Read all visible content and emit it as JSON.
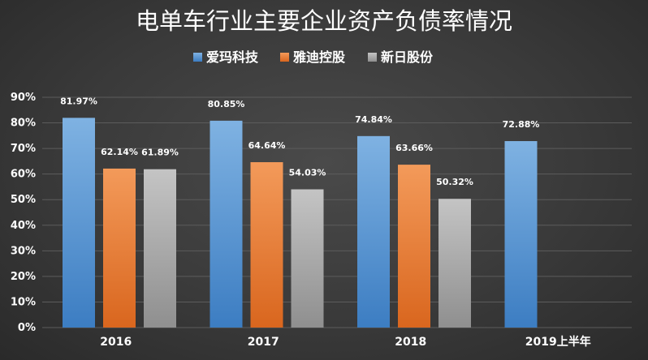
{
  "chart_data": {
    "type": "bar",
    "title": "电单车行业主要企业资产负债率情况",
    "categories": [
      "2016",
      "2017",
      "2018",
      "2019上半年"
    ],
    "series": [
      {
        "name": "爱玛科技",
        "color": "#5b9bd5",
        "values": [
          81.97,
          80.85,
          74.84,
          72.88
        ],
        "labels": [
          "81.97%",
          "80.85%",
          "74.84%",
          "72.88%"
        ]
      },
      {
        "name": "雅迪控股",
        "color": "#ed7d31",
        "values": [
          62.14,
          64.64,
          63.66,
          null
        ],
        "labels": [
          "62.14%",
          "64.64%",
          "63.66%",
          null
        ]
      },
      {
        "name": "新日股份",
        "color": "#a5a5a5",
        "values": [
          61.89,
          54.03,
          50.32,
          null
        ],
        "labels": [
          "61.89%",
          "54.03%",
          "50.32%",
          null
        ]
      }
    ],
    "ylim": [
      0,
      90
    ],
    "yticks": [
      "0%",
      "10%",
      "20%",
      "30%",
      "40%",
      "50%",
      "60%",
      "70%",
      "80%",
      "90%"
    ],
    "xlabel": "",
    "ylabel": "",
    "legend_position": "top-center",
    "grid": true
  }
}
